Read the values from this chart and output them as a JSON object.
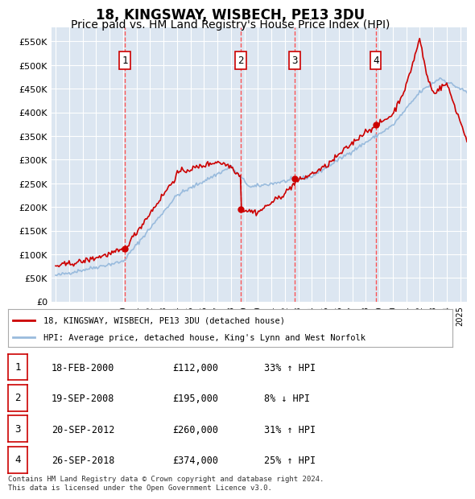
{
  "title": "18, KINGSWAY, WISBECH, PE13 3DU",
  "subtitle": "Price paid vs. HM Land Registry's House Price Index (HPI)",
  "title_fontsize": 12,
  "subtitle_fontsize": 10,
  "ylim": [
    0,
    580000
  ],
  "yticks": [
    0,
    50000,
    100000,
    150000,
    200000,
    250000,
    300000,
    350000,
    400000,
    450000,
    500000,
    550000
  ],
  "ytick_labels": [
    "£0",
    "£50K",
    "£100K",
    "£150K",
    "£200K",
    "£250K",
    "£300K",
    "£350K",
    "£400K",
    "£450K",
    "£500K",
    "£550K"
  ],
  "background_color": "#dce6f1",
  "plot_bg_color": "#dce6f1",
  "red_color": "#cc0000",
  "blue_color": "#99bbdd",
  "sale_color": "#cc0000",
  "vline_color": "#ff4444",
  "box_color": "#cc0000",
  "sale_points": [
    {
      "num": 1,
      "year": 2000.13,
      "price": 112000,
      "label": "1"
    },
    {
      "num": 2,
      "year": 2008.72,
      "price": 195000,
      "label": "2"
    },
    {
      "num": 3,
      "year": 2012.72,
      "price": 260000,
      "label": "3"
    },
    {
      "num": 4,
      "year": 2018.74,
      "price": 374000,
      "label": "4"
    }
  ],
  "table_rows": [
    [
      "1",
      "18-FEB-2000",
      "£112,000",
      "33% ↑ HPI"
    ],
    [
      "2",
      "19-SEP-2008",
      "£195,000",
      "8% ↓ HPI"
    ],
    [
      "3",
      "20-SEP-2012",
      "£260,000",
      "31% ↑ HPI"
    ],
    [
      "4",
      "26-SEP-2018",
      "£374,000",
      "25% ↑ HPI"
    ]
  ],
  "legend_line1": "18, KINGSWAY, WISBECH, PE13 3DU (detached house)",
  "legend_line2": "HPI: Average price, detached house, King's Lynn and West Norfolk",
  "footer": "Contains HM Land Registry data © Crown copyright and database right 2024.\nThis data is licensed under the Open Government Licence v3.0.",
  "xmin": 1995,
  "xmax": 2025
}
